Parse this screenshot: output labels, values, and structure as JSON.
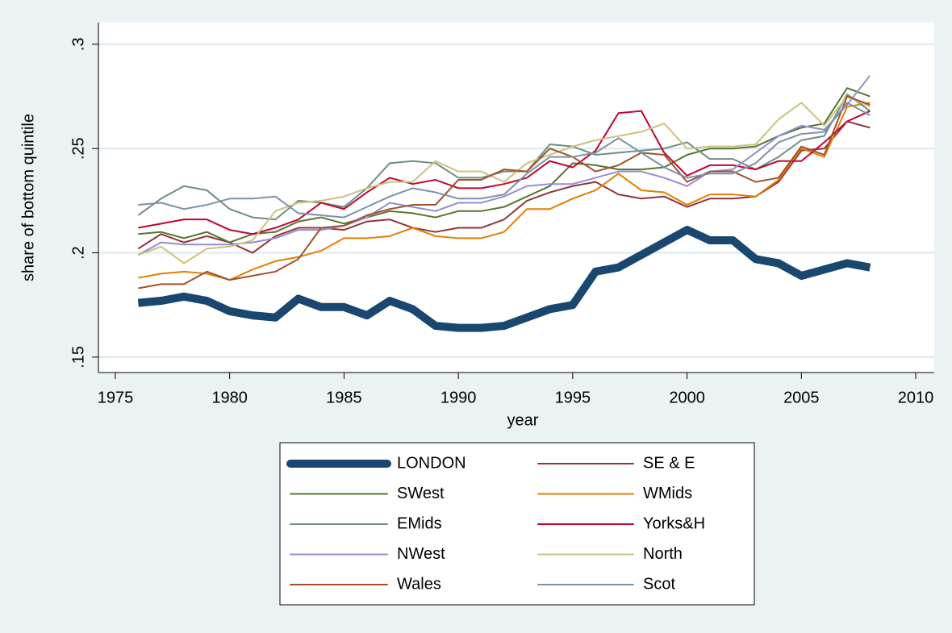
{
  "chart_data": {
    "type": "line",
    "xlabel": "year",
    "ylabel": "share of bottom quintile",
    "x": [
      1976,
      1977,
      1978,
      1979,
      1980,
      1981,
      1982,
      1983,
      1984,
      1985,
      1986,
      1987,
      1988,
      1989,
      1990,
      1991,
      1992,
      1993,
      1994,
      1995,
      1996,
      1997,
      1998,
      1999,
      2000,
      2001,
      2002,
      2003,
      2004,
      2005,
      2006,
      2007,
      2008
    ],
    "xlim": [
      1974.26,
      2010.81
    ],
    "xticks": [
      1975,
      1980,
      1985,
      1990,
      1995,
      2000,
      2005,
      2010
    ],
    "ylim": [
      0.1426,
      0.3104
    ],
    "yticks": [
      {
        "value": 0.15,
        "label": ".15"
      },
      {
        "value": 0.2,
        "label": ".2"
      },
      {
        "value": 0.25,
        "label": ".25"
      },
      {
        "value": 0.3,
        "label": ".3"
      }
    ],
    "grid": true,
    "series": [
      {
        "name": "LONDON",
        "color": "#1a476f",
        "width": 10,
        "values": [
          0.176,
          0.177,
          0.179,
          0.177,
          0.172,
          0.17,
          0.169,
          0.178,
          0.174,
          0.174,
          0.17,
          0.177,
          0.173,
          0.165,
          0.164,
          0.164,
          0.165,
          0.169,
          0.173,
          0.175,
          0.191,
          0.193,
          0.199,
          0.205,
          0.211,
          0.206,
          0.206,
          0.197,
          0.195,
          0.189,
          0.192,
          0.195,
          0.193
        ]
      },
      {
        "name": "SE & E",
        "color": "#90353b",
        "width": 2,
        "values": [
          0.202,
          0.209,
          0.205,
          0.208,
          0.205,
          0.2,
          0.208,
          0.212,
          0.212,
          0.211,
          0.215,
          0.216,
          0.212,
          0.21,
          0.212,
          0.212,
          0.216,
          0.225,
          0.229,
          0.232,
          0.234,
          0.228,
          0.226,
          0.227,
          0.222,
          0.226,
          0.226,
          0.227,
          0.234,
          0.249,
          0.25,
          0.263,
          0.26
        ]
      },
      {
        "name": "SWest",
        "color": "#55752f",
        "width": 2,
        "values": [
          0.209,
          0.21,
          0.207,
          0.21,
          0.205,
          0.209,
          0.21,
          0.215,
          0.217,
          0.214,
          0.217,
          0.22,
          0.219,
          0.217,
          0.22,
          0.22,
          0.222,
          0.227,
          0.232,
          0.243,
          0.242,
          0.24,
          0.24,
          0.241,
          0.247,
          0.25,
          0.25,
          0.251,
          0.256,
          0.26,
          0.262,
          0.279,
          0.275
        ]
      },
      {
        "name": "WMids",
        "color": "#e37e00",
        "width": 2,
        "values": [
          0.188,
          0.19,
          0.191,
          0.19,
          0.187,
          0.192,
          0.196,
          0.198,
          0.201,
          0.207,
          0.207,
          0.208,
          0.212,
          0.208,
          0.207,
          0.207,
          0.21,
          0.221,
          0.221,
          0.226,
          0.23,
          0.238,
          0.23,
          0.229,
          0.223,
          0.228,
          0.228,
          0.227,
          0.235,
          0.25,
          0.246,
          0.27,
          0.272
        ]
      },
      {
        "name": "EMids",
        "color": "#6e8e84",
        "width": 2,
        "values": [
          0.218,
          0.226,
          0.232,
          0.23,
          0.221,
          0.217,
          0.216,
          0.225,
          0.224,
          0.222,
          0.231,
          0.243,
          0.244,
          0.243,
          0.236,
          0.236,
          0.239,
          0.239,
          0.252,
          0.251,
          0.247,
          0.248,
          0.249,
          0.25,
          0.253,
          0.245,
          0.245,
          0.24,
          0.246,
          0.254,
          0.256,
          0.276,
          0.268
        ]
      },
      {
        "name": "Yorks&H",
        "color": "#c10534",
        "width": 2,
        "values": [
          0.212,
          0.214,
          0.216,
          0.216,
          0.211,
          0.209,
          0.212,
          0.216,
          0.224,
          0.221,
          0.229,
          0.236,
          0.233,
          0.235,
          0.231,
          0.231,
          0.233,
          0.236,
          0.244,
          0.241,
          0.249,
          0.267,
          0.268,
          0.248,
          0.237,
          0.242,
          0.242,
          0.24,
          0.244,
          0.244,
          0.253,
          0.263,
          0.268
        ]
      },
      {
        "name": "NWest",
        "color": "#938dd2",
        "width": 2,
        "values": [
          0.199,
          0.205,
          0.204,
          0.204,
          0.204,
          0.205,
          0.207,
          0.211,
          0.211,
          0.213,
          0.217,
          0.224,
          0.222,
          0.22,
          0.224,
          0.224,
          0.227,
          0.232,
          0.233,
          0.233,
          0.236,
          0.239,
          0.239,
          0.236,
          0.232,
          0.239,
          0.24,
          0.248,
          0.256,
          0.261,
          0.259,
          0.271,
          0.285
        ]
      },
      {
        "name": "North",
        "color": "#cac27e",
        "width": 2,
        "values": [
          0.199,
          0.203,
          0.195,
          0.202,
          0.203,
          0.206,
          0.22,
          0.224,
          0.225,
          0.227,
          0.231,
          0.234,
          0.234,
          0.244,
          0.239,
          0.239,
          0.234,
          0.243,
          0.247,
          0.251,
          0.254,
          0.256,
          0.258,
          0.262,
          0.25,
          0.251,
          0.251,
          0.252,
          0.264,
          0.272,
          0.261,
          0.275,
          0.27
        ]
      },
      {
        "name": "Wales",
        "color": "#a0522d",
        "width": 2,
        "values": [
          0.183,
          0.185,
          0.185,
          0.191,
          0.187,
          0.189,
          0.191,
          0.197,
          0.212,
          0.213,
          0.218,
          0.221,
          0.223,
          0.223,
          0.235,
          0.235,
          0.24,
          0.239,
          0.25,
          0.246,
          0.239,
          0.242,
          0.248,
          0.247,
          0.234,
          0.239,
          0.239,
          0.234,
          0.236,
          0.251,
          0.247,
          0.275,
          0.271
        ]
      },
      {
        "name": "Scot",
        "color": "#7b92a8",
        "width": 2,
        "values": [
          0.223,
          0.224,
          0.221,
          0.223,
          0.226,
          0.226,
          0.227,
          0.219,
          0.218,
          0.217,
          0.222,
          0.227,
          0.231,
          0.229,
          0.226,
          0.226,
          0.228,
          0.238,
          0.246,
          0.246,
          0.248,
          0.255,
          0.248,
          0.241,
          0.236,
          0.238,
          0.238,
          0.243,
          0.253,
          0.257,
          0.258,
          0.272,
          0.266
        ]
      }
    ]
  }
}
